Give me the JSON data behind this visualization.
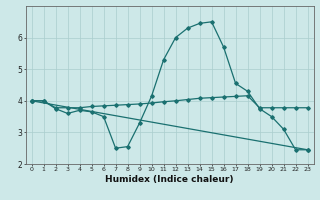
{
  "title": "",
  "xlabel": "Humidex (Indice chaleur)",
  "ylabel": "",
  "background_color": "#cde8e8",
  "line_color": "#1a7070",
  "grid_color": "#aacece",
  "xlim": [
    -0.5,
    23.5
  ],
  "ylim": [
    2,
    7
  ],
  "yticks": [
    2,
    3,
    4,
    5,
    6
  ],
  "xticks": [
    0,
    1,
    2,
    3,
    4,
    5,
    6,
    7,
    8,
    9,
    10,
    11,
    12,
    13,
    14,
    15,
    16,
    17,
    18,
    19,
    20,
    21,
    22,
    23
  ],
  "line1_x": [
    0,
    1,
    2,
    3,
    4,
    5,
    6,
    7,
    8,
    9,
    10,
    11,
    12,
    13,
    14,
    15,
    16,
    17,
    18,
    19,
    20,
    21,
    22,
    23
  ],
  "line1_y": [
    4.0,
    4.0,
    3.75,
    3.6,
    3.7,
    3.65,
    3.5,
    2.5,
    2.55,
    3.3,
    4.15,
    5.3,
    6.0,
    6.3,
    6.45,
    6.5,
    5.7,
    4.55,
    4.3,
    3.75,
    3.5,
    3.1,
    2.45,
    2.45
  ],
  "line2_x": [
    0,
    1,
    2,
    3,
    4,
    5,
    6,
    7,
    8,
    9,
    10,
    11,
    12,
    13,
    14,
    15,
    16,
    17,
    18,
    19,
    20,
    21,
    22,
    23
  ],
  "line2_y": [
    4.0,
    4.0,
    3.78,
    3.78,
    3.78,
    3.82,
    3.84,
    3.86,
    3.88,
    3.9,
    3.93,
    3.97,
    4.0,
    4.04,
    4.08,
    4.1,
    4.12,
    4.14,
    4.16,
    3.78,
    3.78,
    3.78,
    3.78,
    3.78
  ],
  "line3_x": [
    0,
    23
  ],
  "line3_y": [
    4.0,
    2.45
  ],
  "marker": "D",
  "markersize": 1.8,
  "linewidth": 0.9,
  "xlabel_fontsize": 6.5,
  "tick_fontsize_x": 4.5,
  "tick_fontsize_y": 5.5
}
